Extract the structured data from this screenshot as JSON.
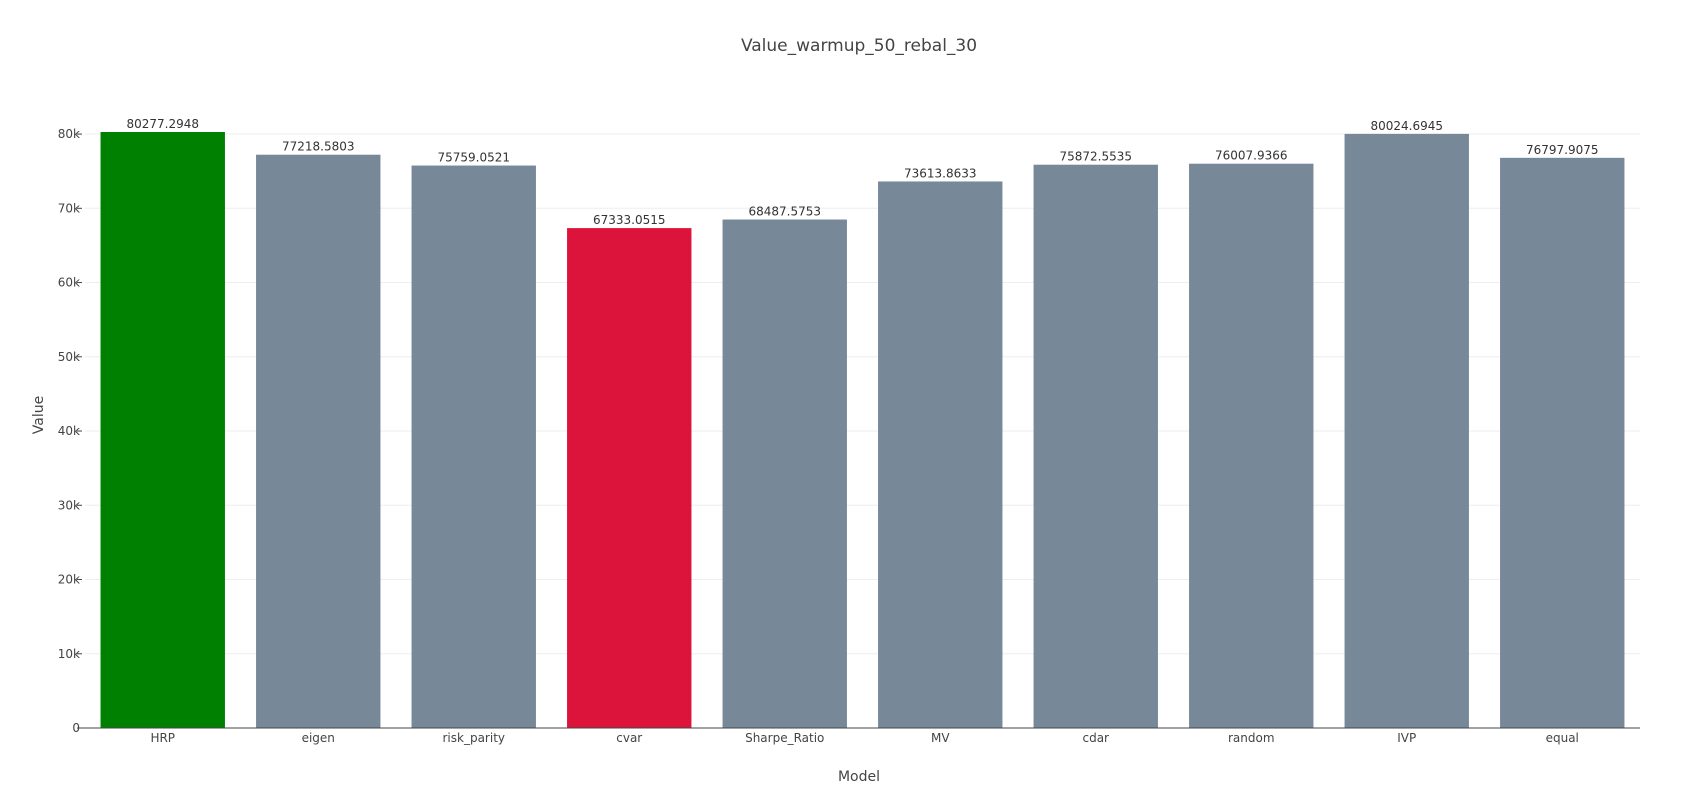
{
  "chart_data": {
    "type": "bar",
    "title": "Value_warmup_50_rebal_30",
    "xlabel": "Model",
    "ylabel": "Value",
    "categories": [
      "HRP",
      "eigen",
      "risk_parity",
      "cvar",
      "Sharpe_Ratio",
      "MV",
      "cdar",
      "random",
      "IVP",
      "equal"
    ],
    "values": [
      80277.2948,
      77218.5803,
      75759.0521,
      67333.0515,
      68487.5753,
      73613.8633,
      75872.5535,
      76007.9366,
      80024.6945,
      76797.9075
    ],
    "data_labels": [
      "80277.2948",
      "77218.5803",
      "75759.0521",
      "67333.0515",
      "68487.5753",
      "73613.8633",
      "75872.5535",
      "76007.9366",
      "80024.6945",
      "76797.9075"
    ],
    "bar_colors": [
      "#008000",
      "#778899",
      "#778899",
      "#DC143C",
      "#778899",
      "#778899",
      "#778899",
      "#778899",
      "#778899",
      "#778899"
    ],
    "ylim": [
      0,
      80277.2948
    ],
    "yticks": [
      0,
      10000,
      20000,
      30000,
      40000,
      50000,
      60000,
      70000,
      80000
    ],
    "ytick_labels": [
      "0",
      "10k",
      "20k",
      "30k",
      "40k",
      "50k",
      "60k",
      "70k",
      "80k"
    ],
    "grid": true,
    "gridline_color": "#eeeeee",
    "axis_color": "#444444"
  }
}
